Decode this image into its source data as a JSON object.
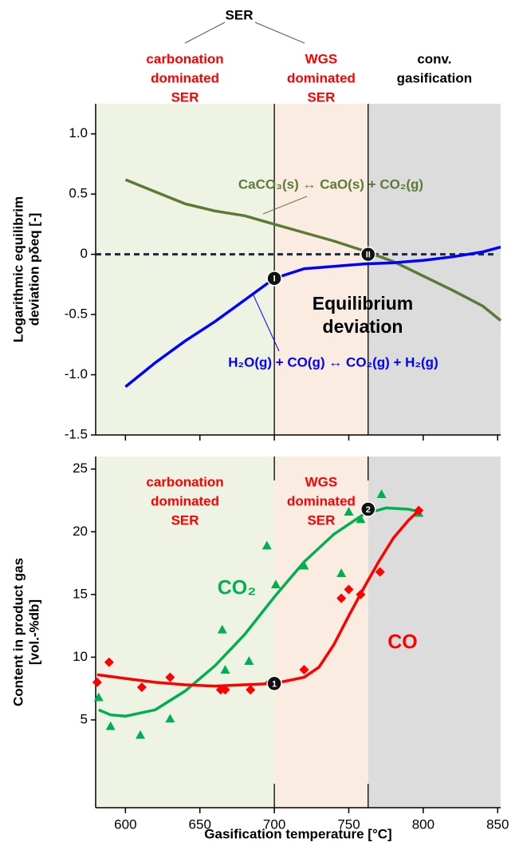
{
  "chart_data": [
    {
      "type": "line",
      "header": "SER",
      "ylabel": [
        "Logarithmic equilibrim",
        "deviation pδeq [-]"
      ],
      "xlim": [
        580,
        852
      ],
      "ylim": [
        -1.5,
        1.25
      ],
      "yticks": [
        {
          "value": 1,
          "label": "1.0"
        },
        0.5,
        0,
        -0.5,
        {
          "value": -1,
          "label": "-1.0"
        },
        -1.5
      ],
      "regions": [
        {
          "label": [
            "carbonation",
            "dominated",
            "SER"
          ],
          "label_color": "#ff0000",
          "from": 580,
          "to": 700,
          "fill": "#eef3e4"
        },
        {
          "label": [
            "WGS",
            "dominated",
            "SER"
          ],
          "label_color": "#ff0000",
          "from": 700,
          "to": 763,
          "fill": "#fbece2"
        },
        {
          "label": [
            "conv.",
            "gasification"
          ],
          "label_color": "#000000",
          "from": 763,
          "to": 852,
          "fill": "#dcdcdc"
        }
      ],
      "reference_line": 0,
      "annotation": [
        "Equilibrium",
        "deviation"
      ],
      "series": [
        {
          "name": "CaCO₃(s) ↔ CaO(s) + CO₂(g)",
          "color": "#5b7a34",
          "x": [
            600,
            620,
            640,
            660,
            680,
            700,
            720,
            740,
            760,
            780,
            800,
            820,
            840,
            852
          ],
          "y": [
            0.62,
            0.52,
            0.42,
            0.36,
            0.32,
            0.25,
            0.18,
            0.11,
            0.03,
            -0.06,
            -0.18,
            -0.3,
            -0.43,
            -0.55
          ]
        },
        {
          "name": "H₂O(g) + CO(g) ↔ CO₂(g) + H₂(g)",
          "color": "#0000ff",
          "x": [
            600,
            620,
            640,
            660,
            680,
            700,
            720,
            740,
            760,
            780,
            800,
            820,
            840,
            852
          ],
          "y": [
            -1.1,
            -0.9,
            -0.72,
            -0.56,
            -0.38,
            -0.2,
            -0.12,
            -0.1,
            -0.08,
            -0.07,
            -0.05,
            -0.02,
            0.02,
            0.06
          ]
        }
      ],
      "points": [
        {
          "label": "I",
          "x": 700,
          "y": -0.2
        },
        {
          "label": "II",
          "x": 763,
          "y": 0
        }
      ]
    },
    {
      "type": "scatter",
      "xlabel": "Gasification temperature [°C]",
      "ylabel": [
        "Content in product gas",
        "[vol.-%db]"
      ],
      "xlim": [
        580,
        852
      ],
      "ylim": [
        -2,
        26
      ],
      "xticks": [
        600,
        650,
        700,
        750,
        800,
        850
      ],
      "yticks": [
        25,
        20,
        15,
        10,
        5
      ],
      "regions": [
        {
          "label": [
            "carbonation",
            "dominated",
            "SER"
          ],
          "label_color": "#ff0000",
          "from": 580,
          "to": 700,
          "fill": "#eef3e4"
        },
        {
          "label": [
            "WGS",
            "dominated",
            "SER"
          ],
          "label_color": "#ff0000",
          "from": 700,
          "to": 763,
          "fill": "#fbece2"
        },
        {
          "label": [],
          "label_color": "#000000",
          "from": 763,
          "to": 852,
          "fill": "#dcdcdc"
        }
      ],
      "series": [
        {
          "name": "CO₂",
          "color": "#00b050",
          "marker": "triangle",
          "x": [
            582,
            590,
            610,
            630,
            665,
            667,
            683,
            695,
            701,
            720,
            745,
            750,
            758,
            772,
            797
          ],
          "y": [
            6.8,
            4.5,
            3.8,
            5.1,
            12.2,
            9,
            9.7,
            18.9,
            15.8,
            17.3,
            16.7,
            21.6,
            21,
            23,
            21.5
          ],
          "fit_x": [
            582,
            590,
            600,
            620,
            640,
            660,
            680,
            700,
            720,
            740,
            760,
            775,
            790,
            797
          ],
          "fit_y": [
            5.8,
            5.4,
            5.3,
            5.8,
            7.3,
            9.3,
            11.8,
            14.8,
            17.6,
            19.8,
            21.4,
            21.9,
            21.8,
            21.6
          ]
        },
        {
          "name": "CO",
          "color": "#ff0000",
          "marker": "diamond",
          "x": [
            581,
            589,
            611,
            630,
            664,
            667,
            684,
            697,
            720,
            745,
            750,
            758,
            771,
            797
          ],
          "y": [
            8,
            9.6,
            7.6,
            8.4,
            7.4,
            7.4,
            7.4,
            8,
            9,
            14.7,
            15.4,
            15,
            16.8,
            21.7
          ],
          "fit_x": [
            581,
            600,
            620,
            640,
            660,
            680,
            700,
            720,
            730,
            740,
            750,
            760,
            770,
            780,
            790,
            797
          ],
          "fit_y": [
            8.6,
            8.3,
            8,
            7.8,
            7.7,
            7.8,
            7.9,
            8.4,
            9.2,
            11,
            13.3,
            15.5,
            17.6,
            19.5,
            20.9,
            21.7
          ]
        }
      ],
      "points": [
        {
          "label": "1",
          "x": 700,
          "y": 7.9
        },
        {
          "label": "2",
          "x": 763,
          "y": 21.8
        }
      ]
    }
  ]
}
